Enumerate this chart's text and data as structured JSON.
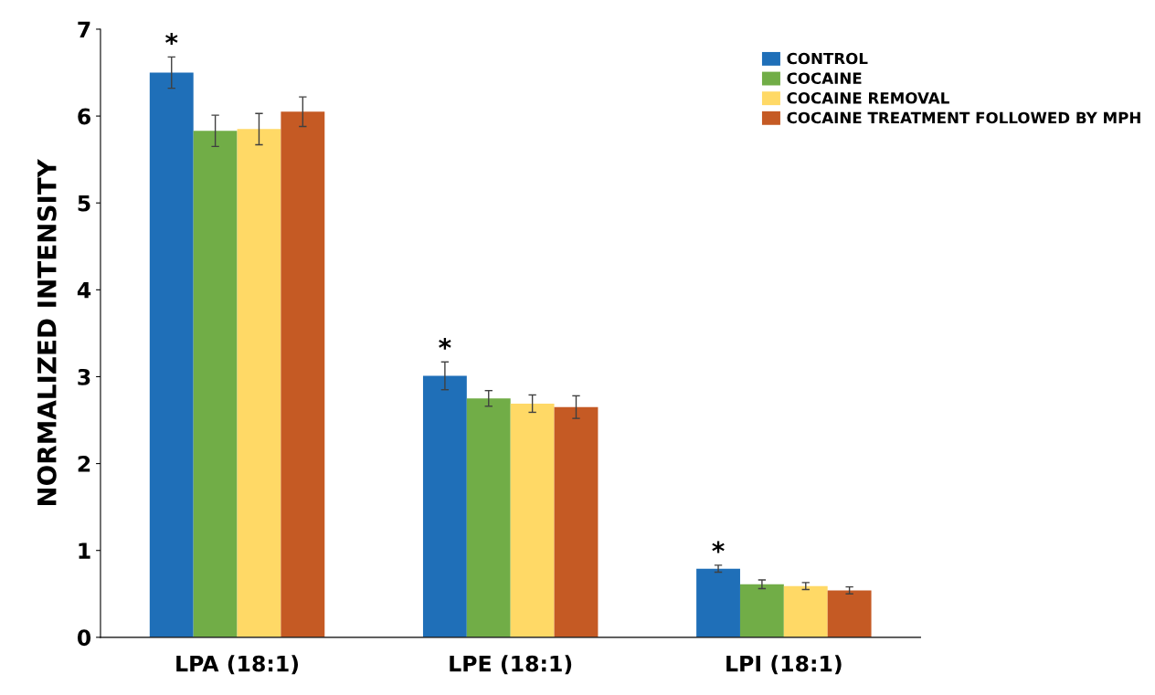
{
  "chart_data": {
    "type": "bar",
    "ylabel": "NORMALIZED INTENSITY",
    "categories": [
      "LPA (18:1)",
      "LPE (18:1)",
      "LPI (18:1)"
    ],
    "series": [
      {
        "name": "CONTROL",
        "color": "#1f6fb8",
        "values": [
          6.5,
          3.01,
          0.79
        ],
        "errors": [
          0.18,
          0.16,
          0.04
        ]
      },
      {
        "name": "COCAINE",
        "color": "#71ad47",
        "values": [
          5.83,
          2.75,
          0.61
        ],
        "errors": [
          0.18,
          0.09,
          0.05
        ]
      },
      {
        "name": "COCAINE REMOVAL",
        "color": "#ffd966",
        "values": [
          5.85,
          2.69,
          0.59
        ],
        "errors": [
          0.18,
          0.1,
          0.04
        ]
      },
      {
        "name": "COCAINE TREATMENT FOLLOWED BY MPH",
        "color": "#c55a24",
        "values": [
          6.05,
          2.65,
          0.54
        ],
        "errors": [
          0.17,
          0.13,
          0.04
        ]
      }
    ],
    "ylim": [
      0,
      7
    ],
    "yticks": [
      0,
      1,
      2,
      3,
      4,
      5,
      6,
      7
    ],
    "grid": false,
    "legend": "top right",
    "annotations": [
      "*",
      "*",
      "*"
    ]
  }
}
